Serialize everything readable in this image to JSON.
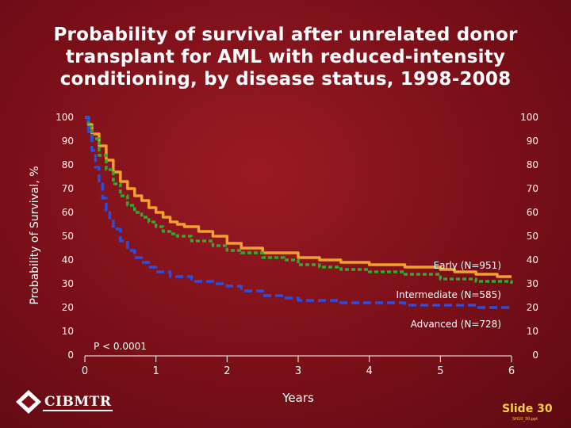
{
  "title_lines": [
    "Probability of survival after unrelated donor",
    "transplant for AML with reduced-intensity",
    "conditioning, by disease status, 1998-2008"
  ],
  "colors": {
    "background": "#7a0f18",
    "early": "#f0a02c",
    "intermediate": "#2faa2f",
    "advanced": "#2a4fe0",
    "axis": "#ffffff",
    "slide_number": "#ffd23c"
  },
  "chart_data": {
    "type": "line",
    "title": "Probability of survival after unrelated donor transplant for AML with reduced-intensity conditioning, by disease status, 1998-2008",
    "xlabel": "Years",
    "ylabel": "Probability of Survival, %",
    "xlim": [
      0,
      6
    ],
    "ylim": [
      0,
      100
    ],
    "x_ticks": [
      "0",
      "1",
      "2",
      "3",
      "4",
      "5",
      "6"
    ],
    "y_ticks": [
      "0",
      "10",
      "20",
      "30",
      "40",
      "50",
      "60",
      "70",
      "80",
      "90",
      "100"
    ],
    "annotation": "P < 0.0001",
    "series": [
      {
        "name": "Early (N=951)",
        "style": "solid",
        "points": [
          [
            0,
            100
          ],
          [
            0.05,
            97
          ],
          [
            0.1,
            93
          ],
          [
            0.2,
            88
          ],
          [
            0.3,
            82
          ],
          [
            0.4,
            77
          ],
          [
            0.5,
            73
          ],
          [
            0.6,
            70
          ],
          [
            0.7,
            67
          ],
          [
            0.8,
            65
          ],
          [
            0.9,
            62
          ],
          [
            1.0,
            60
          ],
          [
            1.1,
            58
          ],
          [
            1.2,
            56
          ],
          [
            1.3,
            55
          ],
          [
            1.4,
            54
          ],
          [
            1.6,
            52
          ],
          [
            1.8,
            50
          ],
          [
            2.0,
            47
          ],
          [
            2.2,
            45
          ],
          [
            2.5,
            43
          ],
          [
            2.8,
            43
          ],
          [
            3.0,
            41
          ],
          [
            3.3,
            40
          ],
          [
            3.6,
            39
          ],
          [
            4.0,
            38
          ],
          [
            4.5,
            37
          ],
          [
            5.0,
            36
          ],
          [
            5.2,
            35
          ],
          [
            5.5,
            34
          ],
          [
            5.8,
            33
          ],
          [
            6.0,
            33
          ]
        ]
      },
      {
        "name": "Intermediate (N=585)",
        "style": "dash",
        "points": [
          [
            0,
            100
          ],
          [
            0.05,
            96
          ],
          [
            0.1,
            91
          ],
          [
            0.2,
            84
          ],
          [
            0.3,
            78
          ],
          [
            0.4,
            72
          ],
          [
            0.5,
            67
          ],
          [
            0.6,
            63
          ],
          [
            0.7,
            60
          ],
          [
            0.8,
            58
          ],
          [
            0.9,
            56
          ],
          [
            1.0,
            54
          ],
          [
            1.1,
            52
          ],
          [
            1.2,
            51
          ],
          [
            1.3,
            50
          ],
          [
            1.5,
            48
          ],
          [
            1.8,
            46
          ],
          [
            2.0,
            44
          ],
          [
            2.2,
            43
          ],
          [
            2.5,
            41
          ],
          [
            2.8,
            40
          ],
          [
            3.0,
            38
          ],
          [
            3.3,
            37
          ],
          [
            3.6,
            36
          ],
          [
            4.0,
            35
          ],
          [
            4.5,
            34
          ],
          [
            5.0,
            32
          ],
          [
            5.5,
            31
          ],
          [
            6.0,
            30
          ]
        ]
      },
      {
        "name": "Advanced (N=728)",
        "style": "longdash",
        "points": [
          [
            0,
            100
          ],
          [
            0.05,
            94
          ],
          [
            0.1,
            86
          ],
          [
            0.15,
            79
          ],
          [
            0.2,
            72
          ],
          [
            0.25,
            66
          ],
          [
            0.3,
            61
          ],
          [
            0.35,
            57
          ],
          [
            0.4,
            53
          ],
          [
            0.5,
            48
          ],
          [
            0.6,
            44
          ],
          [
            0.7,
            41
          ],
          [
            0.8,
            39
          ],
          [
            0.9,
            37
          ],
          [
            1.0,
            35
          ],
          [
            1.2,
            33
          ],
          [
            1.5,
            31
          ],
          [
            1.8,
            30
          ],
          [
            2.0,
            29
          ],
          [
            2.2,
            27
          ],
          [
            2.5,
            25
          ],
          [
            2.8,
            24
          ],
          [
            3.0,
            23
          ],
          [
            3.3,
            23
          ],
          [
            3.6,
            22
          ],
          [
            4.0,
            22
          ],
          [
            4.5,
            21
          ],
          [
            5.0,
            21
          ],
          [
            5.5,
            20
          ],
          [
            6.0,
            20
          ]
        ]
      }
    ]
  },
  "footer": {
    "logo": "CIBMTR",
    "slide_label": "Slide 30",
    "slide_code": "SH10_30.ppt"
  }
}
